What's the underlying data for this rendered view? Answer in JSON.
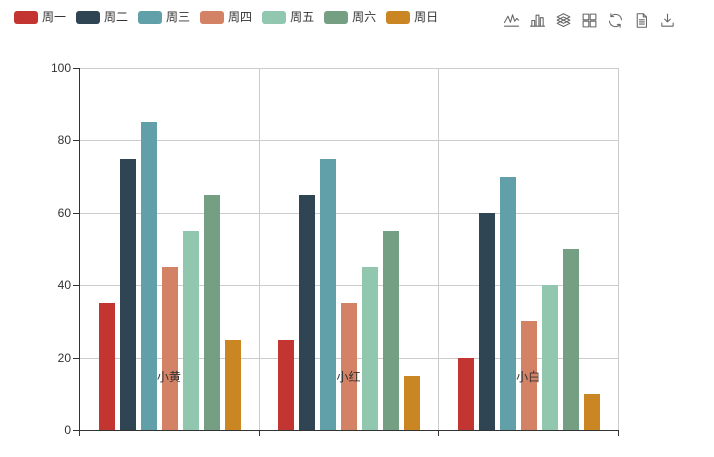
{
  "chart_data": {
    "type": "bar",
    "title": "",
    "categories": [
      "小黄",
      "小红",
      "小白"
    ],
    "series": [
      {
        "name": "周一",
        "color": "#c23531",
        "values": [
          35,
          25,
          20
        ]
      },
      {
        "name": "周二",
        "color": "#2f4554",
        "values": [
          75,
          65,
          60
        ]
      },
      {
        "name": "周三",
        "color": "#61a0a8",
        "values": [
          85,
          75,
          70
        ]
      },
      {
        "name": "周四",
        "color": "#d48265",
        "values": [
          45,
          35,
          30
        ]
      },
      {
        "name": "周五",
        "color": "#91c7ae",
        "values": [
          55,
          45,
          40
        ]
      },
      {
        "name": "周六",
        "color": "#749f83",
        "values": [
          65,
          55,
          50
        ]
      },
      {
        "name": "周日",
        "color": "#ca8622",
        "values": [
          25,
          15,
          10
        ]
      }
    ],
    "xlabel": "",
    "ylabel": "",
    "ylim": [
      0,
      100
    ],
    "yticks": [
      0,
      20,
      40,
      60,
      80,
      100
    ],
    "grid": {
      "show": true,
      "line_color": "#cccccc",
      "axis_color": "#333333"
    },
    "legend_position": "top-left"
  },
  "toolbox": {
    "icons": [
      {
        "name": "magictype-line-icon"
      },
      {
        "name": "magictype-bar-icon"
      },
      {
        "name": "magictype-stack-icon"
      },
      {
        "name": "magictype-tiled-icon"
      },
      {
        "name": "restore-icon"
      },
      {
        "name": "data-view-icon"
      },
      {
        "name": "save-as-image-icon"
      }
    ]
  }
}
